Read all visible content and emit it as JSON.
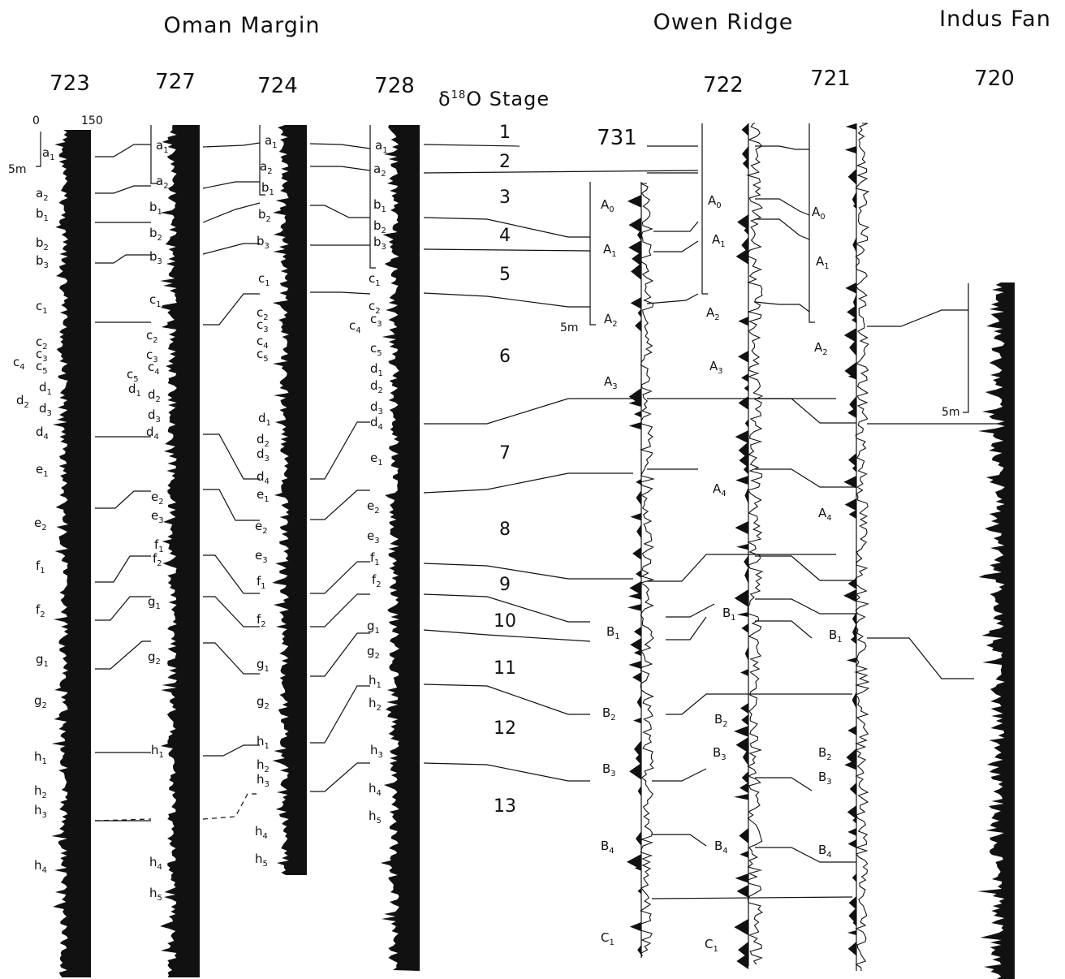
{
  "regions": {
    "oman_margin": "Oman Margin",
    "owen_ridge": "Owen Ridge",
    "indus_fan": "Indus Fan"
  },
  "sites": {
    "s723": "723",
    "s727": "727",
    "s724": "724",
    "s728": "728",
    "s731": "731",
    "s722": "722",
    "s721": "721",
    "s720": "720"
  },
  "stage_header": {
    "prefix": "δ",
    "sup": "18",
    "suffix": "O Stage"
  },
  "stages": [
    "1",
    "2",
    "3",
    "4",
    "5",
    "6",
    "7",
    "8",
    "9",
    "10",
    "11",
    "12",
    "13"
  ],
  "scale_723": {
    "min": "0",
    "max": "150",
    "depth": "5m"
  },
  "scale_731": "5m",
  "scale_720": "5m",
  "labels_723": [
    "a1",
    "a2",
    "b1",
    "b2",
    "b3",
    "c1",
    "c2",
    "c3",
    "c4",
    "c5",
    "d1",
    "d2",
    "d3",
    "d4",
    "e1",
    "e2",
    "f1",
    "f2",
    "g1",
    "g2",
    "h1",
    "h2",
    "h3",
    "h4"
  ],
  "labels_727": [
    "a1",
    "a2",
    "b1",
    "b2",
    "b3",
    "c1",
    "c2",
    "c3",
    "c5",
    "c4",
    "d1",
    "d2",
    "d3",
    "d4",
    "e2",
    "e3",
    "f1",
    "f2",
    "g1",
    "g2",
    "h1",
    "h4",
    "h5"
  ],
  "labels_724": [
    "a1",
    "a2",
    "b1",
    "b2",
    "b3",
    "c1",
    "c2",
    "c3",
    "c4",
    "c5",
    "d1",
    "d2",
    "d3",
    "d4",
    "e1",
    "e2",
    "e3",
    "f1",
    "f2",
    "g1",
    "g2",
    "h1",
    "h2",
    "h3",
    "h4",
    "h5"
  ],
  "labels_728": [
    "a1",
    "a2",
    "b1",
    "b2",
    "b3",
    "c1",
    "c2",
    "c4",
    "c3",
    "c5",
    "d1",
    "d2",
    "d3",
    "d4",
    "e1",
    "e2",
    "e3",
    "f1",
    "f2",
    "g1",
    "g2",
    "h1",
    "h2",
    "h3",
    "h4",
    "h5"
  ],
  "labels_731": [
    "A0",
    "A1",
    "A2",
    "A3",
    "B1",
    "B2",
    "B3",
    "B4",
    "C1"
  ],
  "labels_722": [
    "A0",
    "A1",
    "A2",
    "A3",
    "A4",
    "B1",
    "B2",
    "B3",
    "B4",
    "C1"
  ],
  "labels_721": [
    "A0",
    "A1",
    "A2",
    "A4",
    "B1",
    "B2",
    "B3",
    "B4"
  ],
  "colors": {
    "ink": "#111111",
    "background": "#ffffff"
  }
}
